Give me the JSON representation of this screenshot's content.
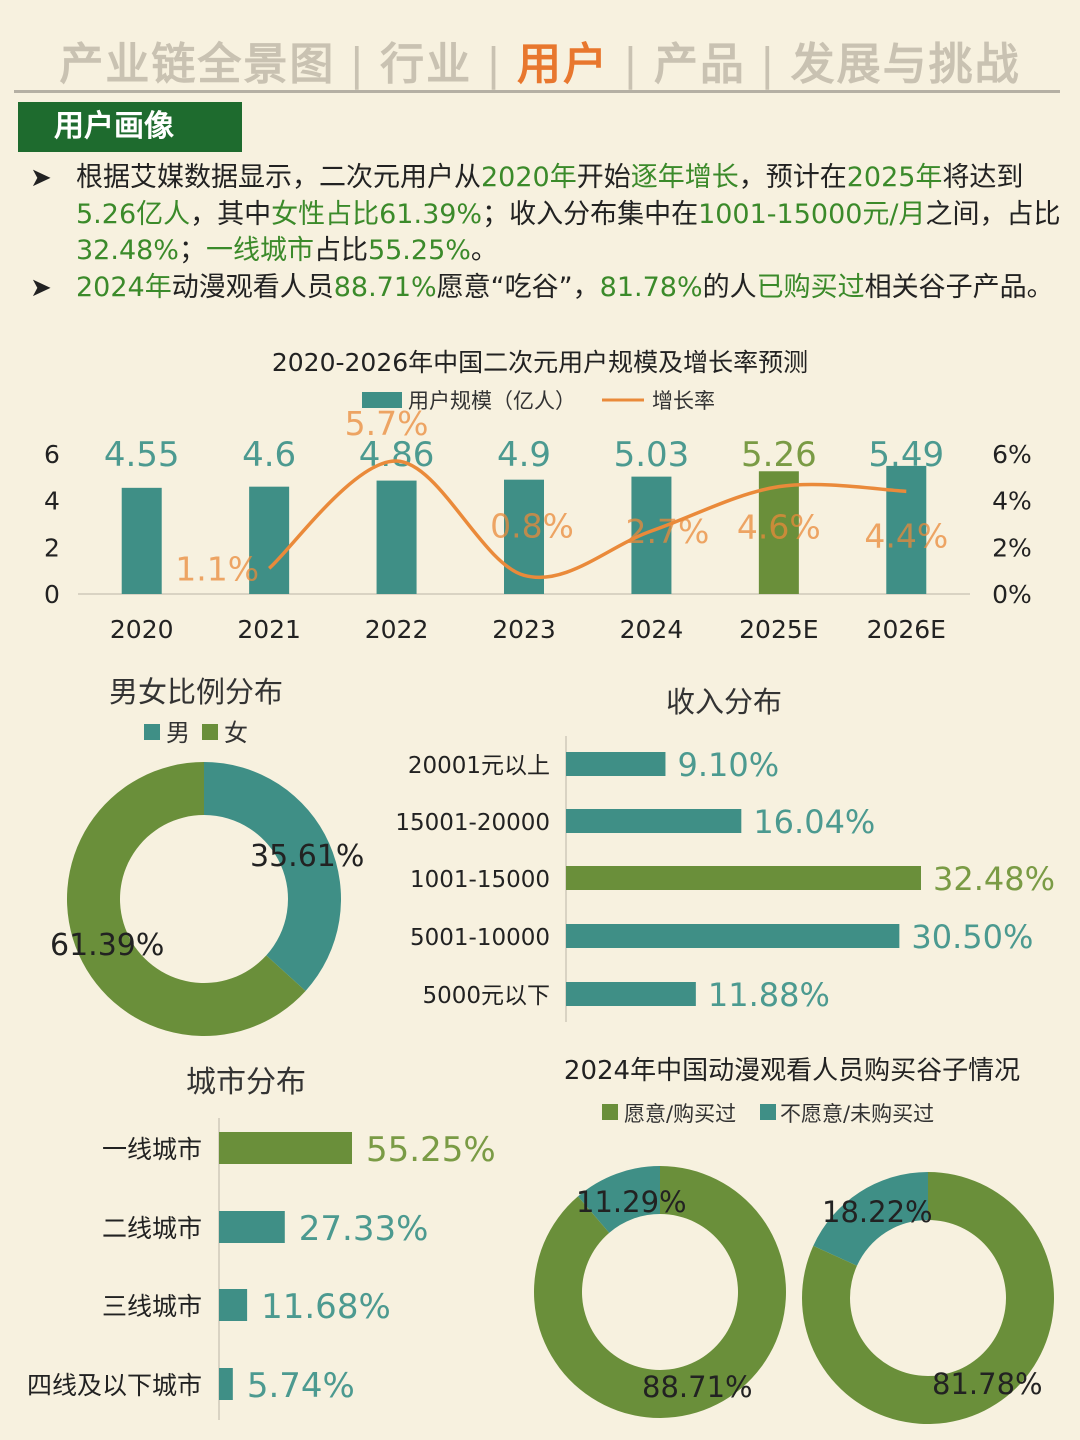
{
  "nav": {
    "items": [
      {
        "label": "产业链全景图",
        "active": false
      },
      {
        "label": "行业",
        "active": false
      },
      {
        "label": "用户",
        "active": true
      },
      {
        "label": "产品",
        "active": false
      },
      {
        "label": "发展与挑战",
        "active": false
      }
    ],
    "separator": "|"
  },
  "section": {
    "title": "用户画像"
  },
  "bullets": [
    {
      "marker": "➤",
      "parts": [
        {
          "t": "根据艾媒数据显示，二次元用户从",
          "g": false
        },
        {
          "t": "2020年",
          "g": true
        },
        {
          "t": "开始",
          "g": false
        },
        {
          "t": "逐年增长",
          "g": true
        },
        {
          "t": "，预计在",
          "g": false
        },
        {
          "t": "2025年",
          "g": true
        },
        {
          "t": "将达到",
          "g": false
        },
        {
          "t": "5.26亿人",
          "g": true
        },
        {
          "t": "，其中",
          "g": false
        },
        {
          "t": "女性占比61.39%",
          "g": true
        },
        {
          "t": "；收入分布集中在",
          "g": false
        },
        {
          "t": "1001-15000元/月",
          "g": true
        },
        {
          "t": "之间，占比",
          "g": false
        },
        {
          "t": "32.48%",
          "g": true
        },
        {
          "t": "；",
          "g": false
        },
        {
          "t": "一线城市",
          "g": true
        },
        {
          "t": "占比",
          "g": false
        },
        {
          "t": "55.25%",
          "g": true
        },
        {
          "t": "。",
          "g": false
        }
      ]
    },
    {
      "marker": "➤",
      "parts": [
        {
          "t": "2024年",
          "g": true
        },
        {
          "t": "动漫观看人员",
          "g": false
        },
        {
          "t": "88.71%",
          "g": true
        },
        {
          "t": "愿意“吃谷”，",
          "g": false
        },
        {
          "t": "81.78%",
          "g": true
        },
        {
          "t": "的人",
          "g": false
        },
        {
          "t": "已购买过",
          "g": true
        },
        {
          "t": "相关谷子产品。",
          "g": false
        }
      ]
    }
  ],
  "colors": {
    "teal": "#3f8f86",
    "olive": "#6a8f3a",
    "orange": "#ea8a3a",
    "label_teal": "#4c9a90",
    "label_olive": "#7a9b45"
  },
  "chart_data": [
    {
      "id": "scale",
      "type": "bar+line",
      "title": "2020-2026年中国二次元用户规模及增长率预测",
      "categories": [
        "2020",
        "2021",
        "2022",
        "2023",
        "2024",
        "2025E",
        "2026E"
      ],
      "series": [
        {
          "name": "用户规模（亿人）",
          "type": "bar",
          "values": [
            4.55,
            4.6,
            4.86,
            4.9,
            5.03,
            5.26,
            5.49
          ],
          "labels": [
            "4.55",
            "4.6",
            "4.86",
            "4.9",
            "5.03",
            "5.26",
            "5.49"
          ]
        },
        {
          "name": "增长率",
          "type": "line",
          "values": [
            null,
            1.1,
            5.7,
            0.8,
            2.7,
            4.6,
            4.4
          ],
          "labels": [
            "",
            "1.1%",
            "5.7%",
            "0.8%",
            "2.7%",
            "4.6%",
            "4.4%"
          ]
        }
      ],
      "highlight_index": 5,
      "y_left": {
        "range": [
          0,
          6
        ],
        "ticks": [
          "0",
          "2",
          "4",
          "6"
        ]
      },
      "y_right": {
        "range": [
          0,
          6
        ],
        "ticks": [
          "0%",
          "2%",
          "4%",
          "6%"
        ]
      },
      "legend": "top"
    },
    {
      "id": "gender",
      "type": "pie",
      "title": "男女比例分布",
      "legend_items": [
        "男",
        "女"
      ],
      "categories": [
        "男",
        "女"
      ],
      "values": [
        35.61,
        61.39
      ],
      "labels": [
        "35.61%",
        "61.39%"
      ]
    },
    {
      "id": "income",
      "type": "bar",
      "orientation": "horizontal",
      "title": "收入分布",
      "categories": [
        "20001元以上",
        "15001-20000",
        "1001-15000",
        "5001-10000",
        "5000元以下"
      ],
      "values": [
        9.1,
        16.04,
        32.48,
        30.5,
        11.88
      ],
      "labels": [
        "9.10%",
        "16.04%",
        "32.48%",
        "30.50%",
        "11.88%"
      ],
      "highlight_index": 2
    },
    {
      "id": "city",
      "type": "bar",
      "orientation": "horizontal",
      "title": "城市分布",
      "categories": [
        "一线城市",
        "二线城市",
        "三线城市",
        "四线及以下城市"
      ],
      "values": [
        55.25,
        27.33,
        11.68,
        5.74
      ],
      "labels": [
        "55.25%",
        "27.33%",
        "11.68%",
        "5.74%"
      ],
      "highlight_index": 0
    },
    {
      "id": "goods",
      "type": "pie",
      "title": "2024年中国动漫观看人员购买谷子情况",
      "legend_items": [
        "愿意/购买过",
        "不愿意/未购买过"
      ],
      "pies": [
        {
          "categories": [
            "愿意",
            "不愿意"
          ],
          "values": [
            88.71,
            11.29
          ],
          "labels": [
            "88.71%",
            "11.29%"
          ]
        },
        {
          "categories": [
            "购买过",
            "未购买过"
          ],
          "values": [
            81.78,
            18.22
          ],
          "labels": [
            "81.78%",
            "18.22%"
          ]
        }
      ]
    }
  ]
}
